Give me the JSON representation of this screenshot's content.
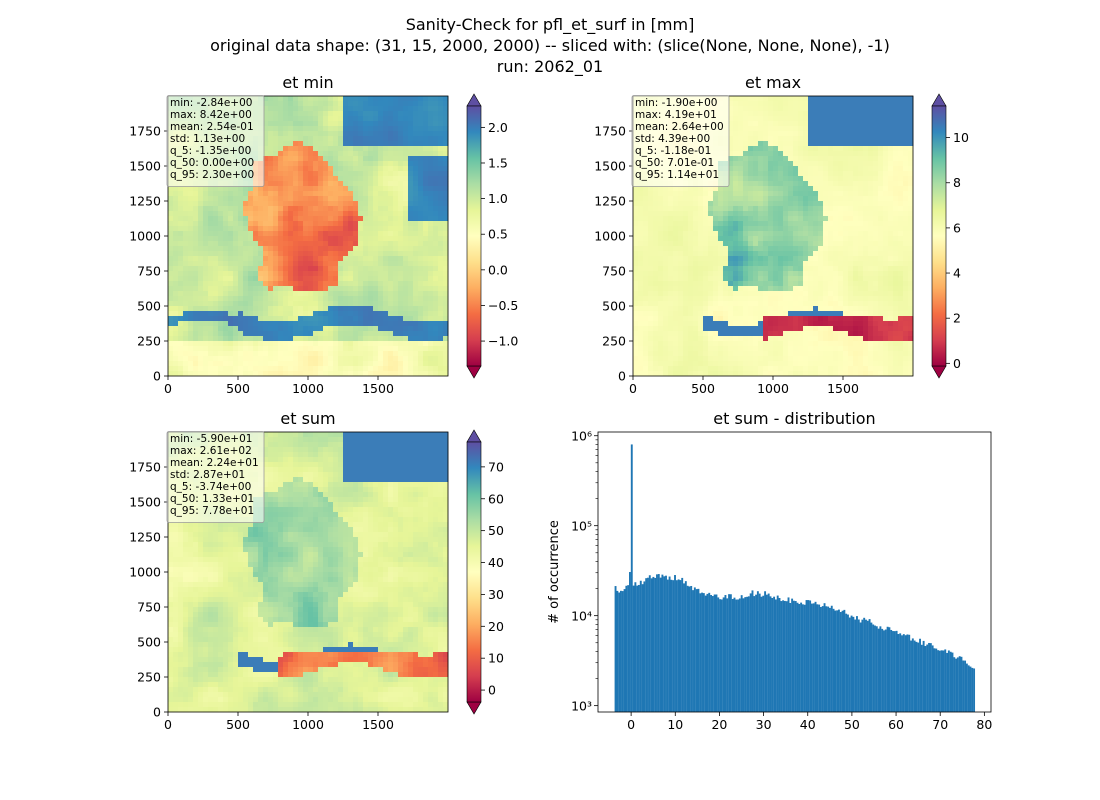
{
  "figure": {
    "title_lines": [
      "Sanity-Check for pfl_et_surf in [mm]",
      "original data shape: (31, 15, 2000, 2000) -- sliced with: (slice(None, None, None), -1)",
      "run: 2062_01"
    ]
  },
  "chart_data": [
    {
      "type": "heatmap",
      "title": "et min",
      "x_ticks": [
        "0",
        "500",
        "1000",
        "1500"
      ],
      "y_ticks": [
        "0",
        "250",
        "500",
        "750",
        "1000",
        "1250",
        "1500",
        "1750"
      ],
      "xlim": [
        0,
        2000
      ],
      "ylim": [
        0,
        2000
      ],
      "stats_box": [
        "min: -2.84e+00",
        "max: 8.42e+00",
        "mean: 2.54e-01",
        "std: 1.13e+00",
        "q_5: -1.35e+00",
        "q_50: 0.00e+00",
        "q_95: 2.30e+00"
      ],
      "colormap": "Spectral",
      "colorbar": {
        "range": [
          -1.35,
          2.3
        ],
        "ticks": [
          {
            "v": 2.0,
            "label": "2.0"
          },
          {
            "v": 1.5,
            "label": "1.5"
          },
          {
            "v": 1.0,
            "label": "1.0"
          },
          {
            "v": 0.5,
            "label": "0.5"
          },
          {
            "v": 0.0,
            "label": "0.0"
          },
          {
            "v": -0.5,
            "label": "−0.5"
          },
          {
            "v": -1.0,
            "label": "−1.0"
          }
        ],
        "extend": "both"
      }
    },
    {
      "type": "heatmap",
      "title": "et max",
      "x_ticks": [
        "0",
        "500",
        "1000",
        "1500"
      ],
      "y_ticks": [
        "0",
        "250",
        "500",
        "750",
        "1000",
        "1250",
        "1500",
        "1750"
      ],
      "xlim": [
        0,
        2000
      ],
      "ylim": [
        0,
        2000
      ],
      "stats_box": [
        "min: -1.90e+00",
        "max: 4.19e+01",
        "mean: 2.64e+00",
        "std: 4.39e+00",
        "q_5: -1.18e-01",
        "q_50: 7.01e-01",
        "q_95: 1.14e+01"
      ],
      "colormap": "Spectral",
      "colorbar": {
        "range": [
          -0.118,
          11.4
        ],
        "ticks": [
          {
            "v": 10,
            "label": "10"
          },
          {
            "v": 8,
            "label": "8"
          },
          {
            "v": 6,
            "label": "6"
          },
          {
            "v": 4,
            "label": "4"
          },
          {
            "v": 2,
            "label": "2"
          },
          {
            "v": 0,
            "label": "0"
          }
        ],
        "extend": "both"
      }
    },
    {
      "type": "heatmap",
      "title": "et sum",
      "x_ticks": [
        "0",
        "500",
        "1000",
        "1500"
      ],
      "y_ticks": [
        "0",
        "250",
        "500",
        "750",
        "1000",
        "1250",
        "1500",
        "1750"
      ],
      "xlim": [
        0,
        2000
      ],
      "ylim": [
        0,
        2000
      ],
      "stats_box": [
        "min: -5.90e+01",
        "max: 2.61e+02",
        "mean: 2.24e+01",
        "std: 2.87e+01",
        "q_5: -3.74e+00",
        "q_50: 1.33e+01",
        "q_95: 7.78e+01"
      ],
      "colormap": "Spectral",
      "colorbar": {
        "range": [
          -3.74,
          77.8
        ],
        "ticks": [
          {
            "v": 70,
            "label": "70"
          },
          {
            "v": 60,
            "label": "60"
          },
          {
            "v": 50,
            "label": "50"
          },
          {
            "v": 40,
            "label": "40"
          },
          {
            "v": 30,
            "label": "30"
          },
          {
            "v": 20,
            "label": "20"
          },
          {
            "v": 10,
            "label": "10"
          },
          {
            "v": 0,
            "label": "0"
          }
        ],
        "extend": "both"
      }
    },
    {
      "type": "bar",
      "subtype": "histogram",
      "title": "et sum - distribution",
      "ylabel": "# of occurrence",
      "xlabel": "",
      "yscale": "log",
      "xlim": [
        -7.5,
        81.5
      ],
      "ylim": [
        850,
        1100000
      ],
      "x_ticks": [
        0,
        10,
        20,
        30,
        40,
        50,
        60,
        70,
        80
      ],
      "y_ticks": [
        {
          "v": 1000,
          "label": "10³"
        },
        {
          "v": 10000,
          "label": "10⁴"
        },
        {
          "v": 100000,
          "label": "10⁵"
        },
        {
          "v": 1000000,
          "label": "10⁶"
        }
      ],
      "bin_range": [
        -3.74,
        77.8
      ],
      "bin_width": 0.408,
      "color": "#1f77b4",
      "profile_points": [
        [
          -3.74,
          20000
        ],
        [
          -2,
          19000
        ],
        [
          -0.3,
          21000
        ],
        [
          0,
          800000
        ],
        [
          0.3,
          22000
        ],
        [
          2,
          23000
        ],
        [
          4,
          26000
        ],
        [
          6,
          28000
        ],
        [
          8,
          27000
        ],
        [
          10,
          26500
        ],
        [
          12,
          24000
        ],
        [
          14,
          20000
        ],
        [
          16,
          17500
        ],
        [
          18,
          16500
        ],
        [
          20,
          16000
        ],
        [
          22,
          16500
        ],
        [
          24,
          16000
        ],
        [
          26,
          17000
        ],
        [
          28,
          18000
        ],
        [
          30,
          17500
        ],
        [
          32,
          16500
        ],
        [
          34,
          15500
        ],
        [
          36,
          15000
        ],
        [
          38,
          14500
        ],
        [
          40,
          14000
        ],
        [
          42,
          13500
        ],
        [
          44,
          13000
        ],
        [
          46,
          12000
        ],
        [
          48,
          11000
        ],
        [
          50,
          10000
        ],
        [
          52,
          9000
        ],
        [
          54,
          8500
        ],
        [
          56,
          7800
        ],
        [
          58,
          7200
        ],
        [
          60,
          6500
        ],
        [
          62,
          6000
        ],
        [
          64,
          5500
        ],
        [
          66,
          5000
        ],
        [
          68,
          4600
        ],
        [
          70,
          4200
        ],
        [
          72,
          3900
        ],
        [
          74,
          3500
        ],
        [
          76,
          3200
        ],
        [
          77.8,
          2400
        ]
      ]
    }
  ]
}
